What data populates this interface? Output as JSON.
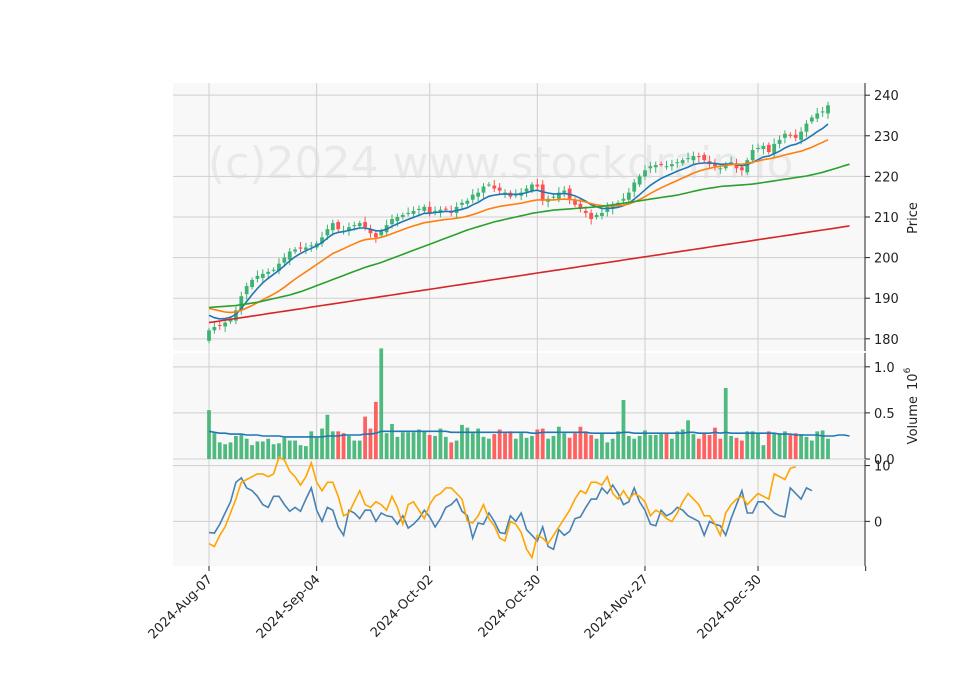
{
  "chart_data": {
    "type": "candlestick",
    "watermark": "(c)2024 www.stockdrain.io",
    "x_tick_labels": [
      "2024-Aug-07",
      "2024-Sep-04",
      "2024-Oct-02",
      "2024-Oct-30",
      "2024-Nov-27",
      "2024-Dec-30"
    ],
    "price_panel": {
      "ylabel": "Price",
      "ylim": [
        177,
        243
      ],
      "yticks": [
        180,
        190,
        200,
        210,
        220,
        230,
        240
      ],
      "close": [
        182.1,
        182.9,
        183.3,
        184.0,
        185.0,
        187.0,
        190.5,
        193.0,
        194.5,
        195.5,
        196.0,
        196.5,
        197.0,
        198.5,
        200.0,
        201.5,
        202.0,
        202.2,
        202.5,
        203.0,
        203.5,
        205.0,
        207.0,
        208.5,
        207.0,
        206.5,
        207.5,
        208.0,
        208.5,
        207.5,
        206.0,
        205.0,
        206.5,
        208.0,
        209.5,
        210.0,
        210.5,
        211.0,
        211.5,
        212.0,
        212.5,
        211.0,
        211.5,
        211.8,
        212.0,
        211.0,
        212.5,
        213.5,
        214.0,
        215.5,
        216.0,
        217.5,
        218.0,
        217.0,
        216.5,
        216.0,
        215.0,
        215.5,
        216.0,
        217.0,
        218.0,
        217.5,
        214.0,
        214.5,
        215.0,
        216.0,
        216.5,
        214.5,
        213.0,
        212.0,
        211.0,
        209.5,
        210.5,
        211.0,
        212.5,
        213.0,
        213.5,
        214.5,
        216.0,
        218.5,
        220.0,
        221.5,
        222.5,
        222.8,
        223.0,
        222.5,
        223.0,
        223.5,
        224.0,
        224.5,
        225.0,
        224.8,
        224.0,
        223.0,
        222.5,
        222.0,
        223.0,
        223.5,
        222.0,
        221.5,
        224.0,
        226.5,
        227.0,
        227.5,
        226.0,
        228.0,
        229.0,
        230.5,
        230.0,
        229.5,
        231.0,
        233.0,
        234.5,
        235.5,
        236.0,
        237.5
      ],
      "series": [
        {
          "name": "",
          "color": "#1f77b4",
          "values": [
            185.8,
            185.2,
            184.9,
            185.0,
            185.3,
            186.0,
            187.5,
            189.2,
            190.9,
            192.4,
            193.8,
            194.9,
            195.9,
            196.9,
            198.0,
            199.2,
            200.2,
            201.0,
            201.7,
            202.3,
            202.9,
            203.7,
            204.8,
            205.8,
            206.2,
            206.4,
            206.7,
            207.0,
            207.3,
            207.3,
            207.0,
            206.6,
            206.6,
            207.0,
            207.7,
            208.3,
            208.9,
            209.4,
            209.9,
            210.4,
            210.9,
            210.9,
            211.1,
            211.2,
            211.4,
            211.3,
            211.6,
            211.9,
            212.3,
            213.0,
            213.6,
            214.4,
            215.1,
            215.4,
            215.6,
            215.7,
            215.6,
            215.6,
            215.7,
            216.0,
            216.4,
            216.6,
            216.2,
            215.9,
            215.7,
            215.7,
            215.8,
            215.6,
            215.2,
            214.6,
            213.9,
            213.0,
            212.5,
            212.1,
            212.1,
            212.2,
            212.4,
            212.8,
            213.4,
            214.4,
            215.5,
            216.7,
            217.8,
            218.7,
            219.5,
            220.1,
            220.7,
            221.3,
            221.8,
            222.3,
            222.9,
            223.2,
            223.3,
            223.3,
            223.2,
            223.0,
            223.0,
            223.1,
            222.9,
            222.6,
            222.9,
            223.5,
            224.1,
            224.8,
            225.0,
            225.6,
            226.2,
            227.0,
            227.6,
            227.9,
            228.5,
            229.2,
            230.1,
            231.0,
            231.8,
            232.9
          ]
        },
        {
          "name": "",
          "color": "#ff7f0e",
          "values": [
            187.5,
            187.2,
            186.9,
            186.6,
            186.5,
            186.6,
            187.0,
            187.6,
            188.2,
            188.9,
            189.6,
            190.3,
            191.0,
            191.8,
            192.7,
            193.7,
            194.7,
            195.6,
            196.5,
            197.4,
            198.3,
            199.2,
            200.1,
            201.0,
            201.6,
            202.2,
            202.8,
            203.4,
            204.0,
            204.4,
            204.6,
            204.7,
            205.0,
            205.4,
            205.9,
            206.4,
            206.9,
            207.4,
            207.8,
            208.2,
            208.6,
            208.8,
            209.0,
            209.2,
            209.4,
            209.5,
            209.7,
            209.9,
            210.2,
            210.6,
            211.0,
            211.5,
            212.0,
            212.3,
            212.6,
            212.8,
            213.0,
            213.2,
            213.4,
            213.7,
            214.0,
            214.2,
            214.2,
            214.2,
            214.2,
            214.3,
            214.4,
            214.3,
            214.2,
            214.0,
            213.7,
            213.3,
            213.0,
            212.8,
            212.7,
            212.7,
            212.8,
            212.9,
            213.2,
            213.7,
            214.3,
            215.0,
            215.8,
            216.5,
            217.2,
            217.8,
            218.4,
            219.0,
            219.6,
            220.2,
            220.8,
            221.3,
            221.7,
            222.0,
            222.3,
            222.5,
            222.7,
            222.9,
            223.0,
            223.0,
            223.2,
            223.5,
            223.8,
            224.1,
            224.3,
            224.6,
            224.9,
            225.3,
            225.6,
            225.9,
            226.2,
            226.7,
            227.2,
            227.8,
            228.4,
            229.0
          ]
        },
        {
          "name": "",
          "color": "#2ca02c",
          "values": [
            187.7,
            187.8,
            187.9,
            188.0,
            188.1,
            188.2,
            188.4,
            188.6,
            188.8,
            189.0,
            189.3,
            189.6,
            189.9,
            190.2,
            190.5,
            190.8,
            191.2,
            191.6,
            192.1,
            192.6,
            193.1,
            193.6,
            194.1,
            194.6,
            195.1,
            195.6,
            196.1,
            196.6,
            197.1,
            197.6,
            198.0,
            198.4,
            198.8,
            199.3,
            199.8,
            200.3,
            200.8,
            201.3,
            201.8,
            202.3,
            202.8,
            203.3,
            203.8,
            204.3,
            204.8,
            205.3,
            205.8,
            206.3,
            206.8,
            207.2,
            207.6,
            208.0,
            208.4,
            208.8,
            209.1,
            209.4,
            209.7,
            210.0,
            210.3,
            210.6,
            210.9,
            211.1,
            211.3,
            211.5,
            211.7,
            211.8,
            211.9,
            212.0,
            212.1,
            212.2,
            212.3,
            212.4,
            212.5,
            212.6,
            212.8,
            213.0,
            213.2,
            213.4,
            213.6,
            213.8,
            214.0,
            214.2,
            214.4,
            214.6,
            214.8,
            215.0,
            215.2,
            215.4,
            215.7,
            216.0,
            216.3,
            216.6,
            216.9,
            217.1,
            217.3,
            217.5,
            217.6,
            217.7,
            217.8,
            217.9,
            218.0,
            218.1,
            218.3,
            218.5,
            218.7,
            218.9,
            219.1,
            219.3,
            219.5,
            219.7,
            219.9,
            220.1,
            220.4,
            220.7,
            221.0,
            221.4,
            221.8,
            222.2,
            222.6,
            223.0
          ]
        },
        {
          "name": "",
          "color": "#d62728",
          "values": [
            184.0,
            184.2,
            184.4,
            184.6,
            184.8,
            185.0,
            185.2,
            185.4,
            185.6,
            185.8,
            186.0,
            186.2,
            186.4,
            186.6,
            186.8,
            187.0,
            187.2,
            187.4,
            187.6,
            187.8,
            188.0,
            188.2,
            188.4,
            188.6,
            188.8,
            189.0,
            189.2,
            189.4,
            189.6,
            189.8,
            190.0,
            190.2,
            190.4,
            190.6,
            190.8,
            191.0,
            191.2,
            191.4,
            191.6,
            191.8,
            192.0,
            192.2,
            192.4,
            192.6,
            192.8,
            193.0,
            193.2,
            193.4,
            193.6,
            193.8,
            194.0,
            194.2,
            194.4,
            194.6,
            194.8,
            195.0,
            195.2,
            195.4,
            195.6,
            195.8,
            196.0,
            196.2,
            196.4,
            196.6,
            196.8,
            197.0,
            197.2,
            197.4,
            197.6,
            197.8,
            198.0,
            198.2,
            198.4,
            198.6,
            198.8,
            199.0,
            199.2,
            199.4,
            199.6,
            199.8,
            200.0,
            200.2,
            200.4,
            200.6,
            200.8,
            201.0,
            201.2,
            201.4,
            201.6,
            201.8,
            202.0,
            202.2,
            202.4,
            202.6,
            202.8,
            203.0,
            203.2,
            203.4,
            203.6,
            203.8,
            204.0,
            204.2,
            204.4,
            204.6,
            204.8,
            205.0,
            205.2,
            205.4,
            205.6,
            205.8,
            206.0,
            206.2,
            206.4,
            206.6,
            206.8,
            207.0,
            207.2,
            207.4,
            207.6,
            207.8
          ]
        }
      ]
    },
    "volume_panel": {
      "ylabel": "Volume",
      "ylabel_exponent": "10",
      "ylabel_exponent_power": "6",
      "ylim": [
        0,
        1.15
      ],
      "yticks": [
        "0.0",
        "0.5",
        "1.0"
      ],
      "up_color": "#3cb371",
      "down_color": "#ff5050",
      "average_color": "#1f77b4",
      "volume": [
        0.53,
        0.28,
        0.18,
        0.16,
        0.18,
        0.25,
        0.26,
        0.22,
        0.15,
        0.19,
        0.19,
        0.22,
        0.16,
        0.17,
        0.23,
        0.2,
        0.2,
        0.15,
        0.14,
        0.3,
        0.23,
        0.33,
        0.48,
        0.3,
        0.3,
        0.28,
        0.25,
        0.2,
        0.2,
        0.46,
        0.33,
        0.62,
        1.2,
        0.28,
        0.38,
        0.24,
        0.29,
        0.29,
        0.29,
        0.32,
        0.3,
        0.26,
        0.25,
        0.33,
        0.24,
        0.18,
        0.2,
        0.37,
        0.34,
        0.28,
        0.33,
        0.24,
        0.22,
        0.27,
        0.32,
        0.28,
        0.3,
        0.22,
        0.28,
        0.23,
        0.25,
        0.32,
        0.33,
        0.22,
        0.25,
        0.35,
        0.28,
        0.23,
        0.28,
        0.35,
        0.3,
        0.26,
        0.22,
        0.28,
        0.18,
        0.22,
        0.3,
        0.64,
        0.25,
        0.22,
        0.25,
        0.31,
        0.26,
        0.26,
        0.27,
        0.28,
        0.22,
        0.3,
        0.32,
        0.42,
        0.27,
        0.22,
        0.28,
        0.26,
        0.34,
        0.22,
        0.77,
        0.25,
        0.23,
        0.2,
        0.3,
        0.3,
        0.28,
        0.15,
        0.3,
        0.28,
        0.27,
        0.3,
        0.26,
        0.28,
        0.27,
        0.24,
        0.2,
        0.3,
        0.31,
        0.22,
        0.26,
        0.28,
        0.3,
        0.3
      ],
      "average": [
        0.3,
        0.29,
        0.28,
        0.28,
        0.27,
        0.27,
        0.27,
        0.26,
        0.26,
        0.26,
        0.25,
        0.25,
        0.25,
        0.25,
        0.24,
        0.24,
        0.24,
        0.24,
        0.24,
        0.24,
        0.24,
        0.24,
        0.25,
        0.25,
        0.25,
        0.26,
        0.26,
        0.26,
        0.26,
        0.27,
        0.27,
        0.28,
        0.3,
        0.3,
        0.3,
        0.3,
        0.3,
        0.3,
        0.3,
        0.3,
        0.3,
        0.3,
        0.3,
        0.3,
        0.3,
        0.29,
        0.29,
        0.29,
        0.29,
        0.29,
        0.29,
        0.29,
        0.29,
        0.29,
        0.29,
        0.29,
        0.29,
        0.29,
        0.29,
        0.29,
        0.28,
        0.28,
        0.29,
        0.29,
        0.29,
        0.29,
        0.29,
        0.29,
        0.29,
        0.29,
        0.29,
        0.28,
        0.28,
        0.28,
        0.28,
        0.28,
        0.28,
        0.29,
        0.29,
        0.28,
        0.28,
        0.28,
        0.28,
        0.28,
        0.28,
        0.28,
        0.28,
        0.28,
        0.28,
        0.29,
        0.29,
        0.28,
        0.28,
        0.28,
        0.29,
        0.28,
        0.29,
        0.28,
        0.28,
        0.28,
        0.28,
        0.28,
        0.28,
        0.28,
        0.28,
        0.28,
        0.27,
        0.27,
        0.27,
        0.26,
        0.26,
        0.26,
        0.26,
        0.26,
        0.25,
        0.25,
        0.25,
        0.26,
        0.26,
        0.25
      ]
    },
    "oscillator_panel": {
      "ylim": [
        -8,
        11
      ],
      "yticks": [
        0,
        10
      ],
      "series": [
        {
          "name": "",
          "color": "#4682b4",
          "values": [
            -2.0,
            -2.1,
            -0.5,
            1.5,
            3.5,
            7.0,
            7.8,
            6.0,
            5.5,
            4.5,
            3.0,
            2.5,
            4.5,
            4.5,
            3.0,
            1.8,
            2.5,
            1.8,
            4.0,
            6.0,
            2.0,
            0.0,
            2.5,
            2.0,
            -1.0,
            -2.5,
            2.0,
            1.5,
            0.5,
            2.0,
            2.0,
            0.0,
            1.5,
            1.0,
            0.8,
            -0.5,
            1.0,
            -1.2,
            -0.5,
            0.5,
            2.0,
            0.8,
            -1.0,
            0.5,
            2.5,
            3.0,
            4.0,
            1.8,
            1.0,
            -3.0,
            -0.3,
            -0.5,
            1.5,
            0.0,
            -2.0,
            -2.2,
            1.0,
            0.0,
            1.5,
            -1.5,
            -2.5,
            -3.5,
            -1.0,
            -4.5,
            -5.0,
            -1.5,
            -2.5,
            -1.8,
            0.5,
            0.8,
            2.5,
            4.0,
            4.0,
            6.0,
            5.0,
            6.5,
            5.0,
            3.0,
            3.5,
            6.0,
            3.5,
            2.0,
            -0.5,
            -0.8,
            2.0,
            1.0,
            1.5,
            2.5,
            2.0,
            1.0,
            0.5,
            0.0,
            -2.5,
            0.0,
            -0.5,
            -0.8,
            -2.5,
            0.5,
            3.0,
            5.5,
            1.5,
            1.5,
            3.5,
            3.5,
            2.5,
            1.5,
            1.0,
            0.8,
            6.0,
            5.0,
            4.0,
            6.0,
            5.5
          ]
        },
        {
          "name": "",
          "color": "#ffa500",
          "values": [
            -4.0,
            -4.5,
            -2.5,
            -1.0,
            1.5,
            4.0,
            7.0,
            7.5,
            8.0,
            8.5,
            8.5,
            8.0,
            8.5,
            11.5,
            11.0,
            9.0,
            8.0,
            6.5,
            8.0,
            10.5,
            7.0,
            5.5,
            7.0,
            7.0,
            4.5,
            1.0,
            1.5,
            3.5,
            5.5,
            3.0,
            2.5,
            3.5,
            3.0,
            2.0,
            4.5,
            2.5,
            -0.5,
            3.0,
            3.5,
            2.0,
            0.5,
            3.0,
            4.5,
            5.0,
            6.0,
            6.0,
            5.0,
            4.0,
            0.0,
            -0.3,
            1.0,
            3.0,
            0.5,
            -0.8,
            -3.0,
            -3.5,
            0.0,
            -0.5,
            -2.0,
            -5.0,
            -6.5,
            -2.5,
            -3.0,
            -4.0,
            -2.5,
            -1.0,
            0.5,
            2.0,
            4.0,
            5.5,
            5.0,
            7.0,
            7.0,
            6.5,
            8.0,
            5.0,
            4.0,
            5.5,
            4.0,
            5.0,
            4.5,
            3.5,
            1.0,
            2.0,
            1.5,
            0.5,
            0.0,
            1.5,
            3.5,
            5.0,
            4.0,
            3.0,
            1.0,
            1.0,
            -0.5,
            -2.5,
            1.5,
            3.0,
            4.0,
            4.5,
            3.0,
            4.0,
            5.0,
            4.5,
            4.0,
            8.5,
            8.0,
            7.5,
            9.5,
            9.8
          ]
        }
      ]
    }
  }
}
